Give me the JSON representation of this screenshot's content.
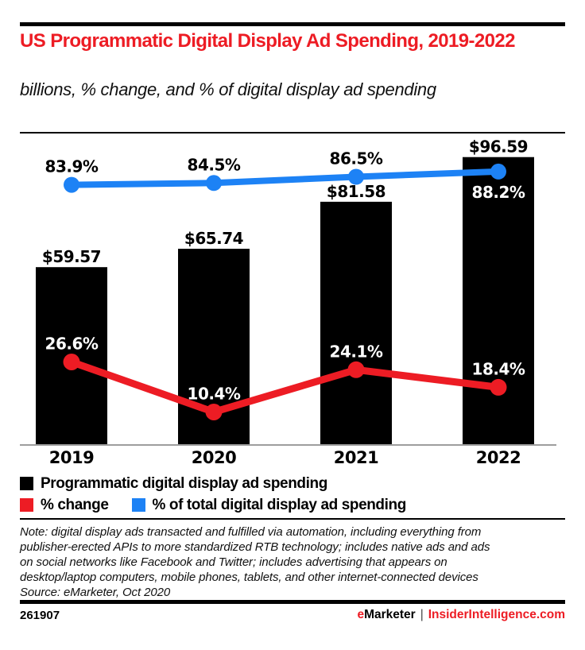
{
  "colors": {
    "accent_red": "#ed1c24",
    "line_blue": "#1d82f5",
    "bar_black": "#000000",
    "axis_gray": "#9e9e9e"
  },
  "header": {
    "title": "US Programmatic Digital Display Ad Spending, 2019-2022",
    "subtitle": "billions, % change, and % of digital display ad spending"
  },
  "chart_data": {
    "type": "bar+line",
    "title": "US Programmatic Digital Display Ad Spending, 2019-2022",
    "subtitle": "billions, % change, and % of digital display ad spending",
    "categories": [
      "2019",
      "2020",
      "2021",
      "2022"
    ],
    "series": [
      {
        "name": "Programmatic digital display ad spending",
        "type": "bar",
        "unit": "billions USD",
        "color": "#000000",
        "values": [
          59.57,
          65.74,
          81.58,
          96.59
        ],
        "labels": [
          "$59.57",
          "$65.74",
          "$81.58",
          "$96.59"
        ],
        "label_color": "#000000"
      },
      {
        "name": "% change",
        "type": "line",
        "color": "#ed1c24",
        "values": [
          26.6,
          10.4,
          24.1,
          18.4
        ],
        "labels": [
          "26.6%",
          "10.4%",
          "24.1%",
          "18.4%"
        ],
        "label_colors": [
          "#ffffff",
          "#ffffff",
          "#ffffff",
          "#ffffff"
        ],
        "label_sides": [
          "above",
          "above",
          "above",
          "above"
        ]
      },
      {
        "name": "% of total digital display ad spending",
        "type": "line",
        "color": "#1d82f5",
        "values": [
          83.9,
          84.5,
          86.5,
          88.2
        ],
        "labels": [
          "83.9%",
          "84.5%",
          "86.5%",
          "88.2%"
        ],
        "label_colors": [
          "#000000",
          "#000000",
          "#000000",
          "#ffffff"
        ],
        "label_sides": [
          "above",
          "above",
          "above",
          "below"
        ]
      }
    ],
    "bar_axis_max": 104,
    "pct_axis_max": 100,
    "axis_color": "#9e9e9e",
    "grid": false,
    "legend_position": "bottom"
  },
  "legend": {
    "items": [
      {
        "label": "Programmatic digital display ad spending",
        "color": "#000000"
      },
      {
        "label": "% change",
        "color": "#ed1c24"
      },
      {
        "label": "% of total digital display ad spending",
        "color": "#1d82f5"
      }
    ]
  },
  "note": {
    "lines": [
      "Note: digital display ads transacted and fulfilled via automation, including everything from",
      "publisher-erected APIs to more standardized RTB technology; includes native ads and ads",
      "on social networks like Facebook and Twitter; includes advertising that appears on",
      "desktop/laptop computers, mobile phones, tablets, and other internet-connected devices"
    ],
    "source": "Source: eMarketer, Oct 2020"
  },
  "footer": {
    "chart_id": "261907",
    "brand_first_letter": "e",
    "brand_rest": "Marketer",
    "divider": "|",
    "site": "InsiderIntelligence.com"
  }
}
